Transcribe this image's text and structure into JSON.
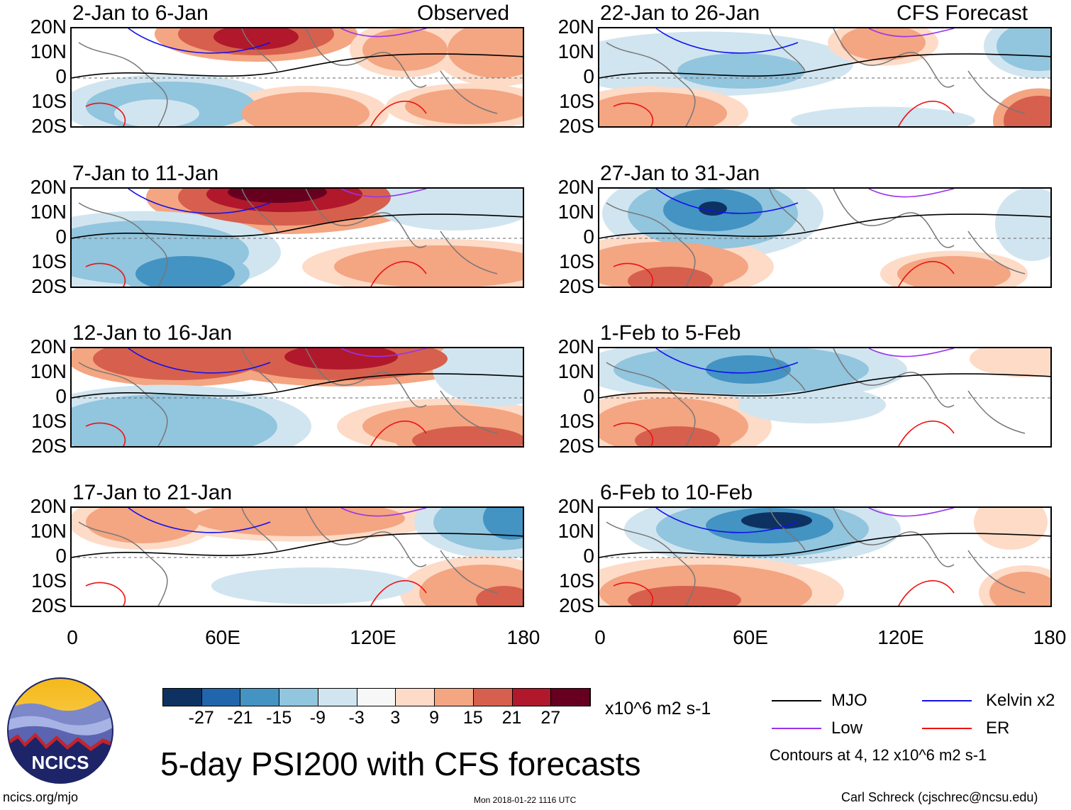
{
  "header": {
    "observed_label": "Observed",
    "forecast_label": "CFS Forecast"
  },
  "panels": [
    {
      "title": "2-Jan to 6-Jan"
    },
    {
      "title": "7-Jan to 11-Jan"
    },
    {
      "title": "12-Jan to 16-Jan"
    },
    {
      "title": "17-Jan to 21-Jan"
    },
    {
      "title": "22-Jan to 26-Jan"
    },
    {
      "title": "27-Jan to 31-Jan"
    },
    {
      "title": "1-Feb to 5-Feb"
    },
    {
      "title": "6-Feb to 10-Feb"
    }
  ],
  "axes": {
    "lat_labels": [
      "20N",
      "10N",
      "0",
      "10S",
      "20S"
    ],
    "lon_labels": [
      "0",
      "60E",
      "120E",
      "180"
    ]
  },
  "colorbar": {
    "labels": [
      "-27",
      "-21",
      "-15",
      "-9",
      "-3",
      "3",
      "9",
      "15",
      "21",
      "27"
    ],
    "units": "x10^6 m2 s-1",
    "colors": [
      "#0d3262",
      "#2166ac",
      "#4393c3",
      "#92c5de",
      "#d1e5f0",
      "#f7f7f7",
      "#fddbc7",
      "#f4a582",
      "#d6604d",
      "#b2182b",
      "#67001f"
    ]
  },
  "legend": {
    "mjo": "MJO",
    "kelvin": "Kelvin x2",
    "low": "Low",
    "er": "ER",
    "contours_note": "Contours at 4, 12 x10^6 m2 s-1",
    "colors": {
      "mjo": "#000000",
      "kelvin": "#1010ee",
      "low": "#9933ee",
      "er": "#ee1111"
    }
  },
  "footer": {
    "main_title": "5-day PSI200 with CFS forecasts",
    "logo_text": "NCICS",
    "url": "ncics.org/mjo",
    "timestamp": "Mon 2018-01-22 1116 UTC",
    "credit": "Carl Schreck (cjschrec@ncsu.edu)"
  }
}
